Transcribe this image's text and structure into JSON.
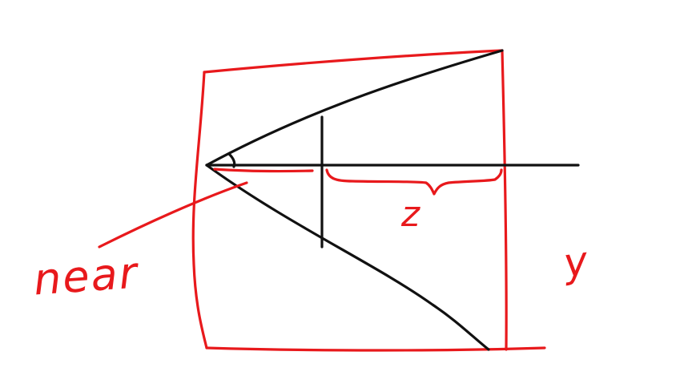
{
  "colors": {
    "red": "#e8191c",
    "black": "#111111",
    "background": "#ffffff"
  },
  "labels": {
    "near": "near",
    "z": "z",
    "y": "y"
  }
}
